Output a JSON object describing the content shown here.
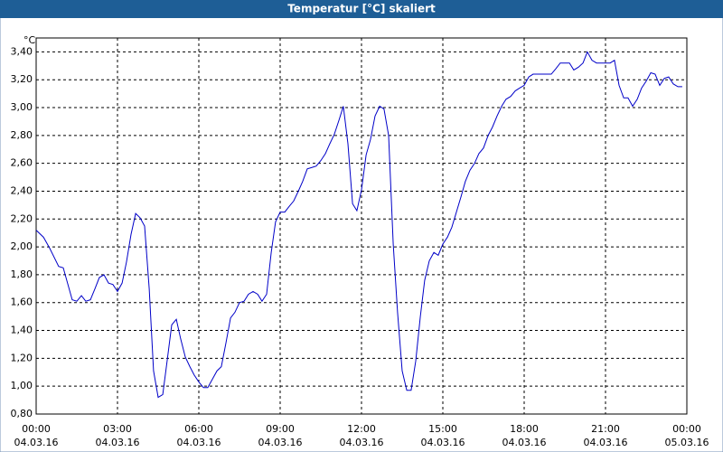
{
  "chart_data": {
    "type": "line",
    "title": "Temperatur [°C] skaliert",
    "ylabel": "°C",
    "x": [
      0,
      0.27,
      0.5,
      0.83,
      1,
      1.33,
      1.5,
      1.67,
      1.83,
      2,
      2.17,
      2.33,
      2.5,
      2.67,
      2.83,
      3,
      3.17,
      3.33,
      3.5,
      3.67,
      3.83,
      4,
      4.17,
      4.33,
      4.5,
      4.67,
      4.83,
      5,
      5.17,
      5.33,
      5.5,
      5.67,
      5.83,
      6,
      6.17,
      6.33,
      6.5,
      6.67,
      6.83,
      7,
      7.17,
      7.33,
      7.5,
      7.67,
      7.83,
      8,
      8.17,
      8.33,
      8.5,
      8.67,
      8.83,
      9,
      9.17,
      9.33,
      9.5,
      9.67,
      9.83,
      10,
      10.17,
      10.33,
      10.5,
      10.67,
      10.83,
      11,
      11.17,
      11.33,
      11.5,
      11.67,
      11.83,
      12,
      12.17,
      12.33,
      12.5,
      12.67,
      12.83,
      13,
      13.17,
      13.33,
      13.5,
      13.67,
      13.83,
      14,
      14.17,
      14.33,
      14.5,
      14.67,
      14.83,
      15,
      15.17,
      15.33,
      15.5,
      15.67,
      15.83,
      16,
      16.17,
      16.33,
      16.5,
      16.67,
      16.83,
      17,
      17.17,
      17.33,
      17.5,
      17.67,
      17.83,
      18,
      18.17,
      18.33,
      18.67,
      19,
      19.17,
      19.33,
      19.5,
      19.67,
      19.83,
      20,
      20.17,
      20.33,
      20.5,
      20.67,
      20.83,
      21,
      21.17,
      21.33,
      21.5,
      21.67,
      21.83,
      22,
      22.17,
      22.33,
      22.5,
      22.67,
      22.83,
      23,
      23.17,
      23.33,
      23.5,
      23.67,
      23.83
    ],
    "values": [
      2.12,
      2.07,
      1.99,
      1.86,
      1.85,
      1.62,
      1.61,
      1.65,
      1.61,
      1.62,
      1.7,
      1.78,
      1.8,
      1.74,
      1.73,
      1.68,
      1.74,
      1.89,
      2.09,
      2.24,
      2.21,
      2.15,
      1.7,
      1.11,
      0.92,
      0.94,
      1.18,
      1.44,
      1.48,
      1.34,
      1.21,
      1.14,
      1.08,
      1.03,
      0.99,
      0.99,
      1.05,
      1.11,
      1.14,
      1.31,
      1.49,
      1.53,
      1.6,
      1.61,
      1.66,
      1.68,
      1.66,
      1.61,
      1.66,
      1.96,
      2.18,
      2.25,
      2.25,
      2.29,
      2.33,
      2.4,
      2.47,
      2.56,
      2.57,
      2.58,
      2.62,
      2.67,
      2.74,
      2.81,
      2.91,
      3.01,
      2.74,
      2.31,
      2.26,
      2.41,
      2.66,
      2.77,
      2.94,
      3.01,
      2.99,
      2.8,
      2.02,
      1.53,
      1.11,
      0.97,
      0.97,
      1.18,
      1.5,
      1.76,
      1.9,
      1.96,
      1.94,
      2.02,
      2.07,
      2.14,
      2.25,
      2.36,
      2.47,
      2.55,
      2.6,
      2.67,
      2.71,
      2.8,
      2.86,
      2.94,
      3.01,
      3.06,
      3.08,
      3.12,
      3.14,
      3.16,
      3.22,
      3.24,
      3.24,
      3.24,
      3.28,
      3.32,
      3.32,
      3.32,
      3.27,
      3.29,
      3.32,
      3.4,
      3.34,
      3.32,
      3.32,
      3.32,
      3.32,
      3.34,
      3.16,
      3.07,
      3.07,
      3.01,
      3.06,
      3.14,
      3.19,
      3.25,
      3.24,
      3.16,
      3.21,
      3.22,
      3.17,
      3.15,
      3.15
    ],
    "color": "#0000c8",
    "xlim": [
      0,
      24
    ],
    "xticks": [
      {
        "value": 0,
        "label": "00:00"
      },
      {
        "value": 3,
        "label": "03:00"
      },
      {
        "value": 6,
        "label": "06:00"
      },
      {
        "value": 9,
        "label": "09:00"
      },
      {
        "value": 12,
        "label": "12:00"
      },
      {
        "value": 15,
        "label": "15:00"
      },
      {
        "value": 18,
        "label": "18:00"
      },
      {
        "value": 21,
        "label": "21:00"
      },
      {
        "value": 24,
        "label": "00:00"
      }
    ],
    "xtick_dates": [
      "04.03.16",
      "04.03.16",
      "04.03.16",
      "04.03.16",
      "04.03.16",
      "04.03.16",
      "04.03.16",
      "04.03.16",
      "05.03.16"
    ],
    "ylim": [
      0.8,
      3.5
    ],
    "yticks": [
      {
        "value": 0.8,
        "label": "0,80"
      },
      {
        "value": 1.0,
        "label": "1,00"
      },
      {
        "value": 1.2,
        "label": "1,20"
      },
      {
        "value": 1.4,
        "label": "1,40"
      },
      {
        "value": 1.6,
        "label": "1,60"
      },
      {
        "value": 1.8,
        "label": "1,80"
      },
      {
        "value": 2.0,
        "label": "2,00"
      },
      {
        "value": 2.2,
        "label": "2,20"
      },
      {
        "value": 2.4,
        "label": "2,40"
      },
      {
        "value": 2.6,
        "label": "2,60"
      },
      {
        "value": 2.8,
        "label": "2,80"
      },
      {
        "value": 3.0,
        "label": "3,00"
      },
      {
        "value": 3.2,
        "label": "3,20"
      },
      {
        "value": 3.4,
        "label": "3,40"
      }
    ],
    "grid": true
  }
}
